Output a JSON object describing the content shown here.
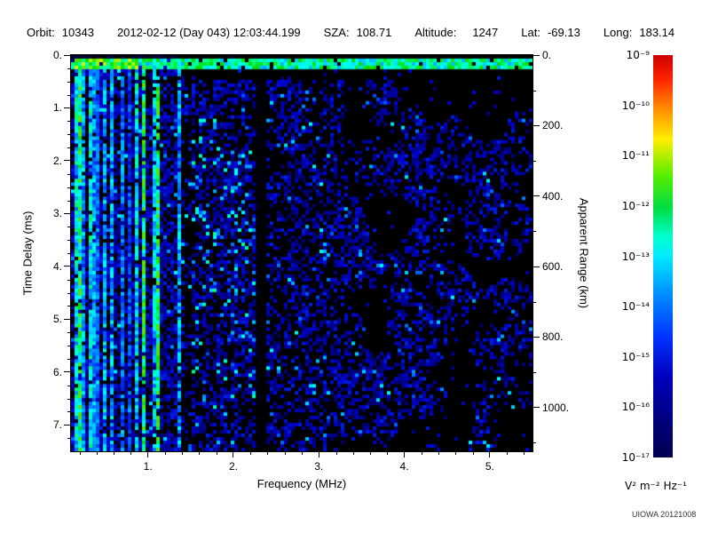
{
  "header": {
    "orbit_label": "Orbit:",
    "orbit_value": "10343",
    "datetime": "2012-02-12 (Day 043) 12:03:44.199",
    "sza_label": "SZA:",
    "sza_value": "108.71",
    "altitude_label": "Altitude:",
    "altitude_value": "1247",
    "lat_label": "Lat:",
    "lat_value": "-69.13",
    "long_label": "Long:",
    "long_value": "183.14"
  },
  "chart_data": {
    "type": "heatmap",
    "title": "",
    "xlabel": "Frequency (MHz)",
    "ylabel_left": "Time Delay (ms)",
    "ylabel_right": "Apparent Range (km)",
    "x_range_mhz": [
      0.1,
      5.5
    ],
    "x_tick_labels": [
      "1.",
      "2.",
      "3.",
      "4.",
      "5."
    ],
    "y_range_ms": [
      0,
      7.5
    ],
    "y_tick_labels": [
      "0.",
      "1.",
      "2.",
      "3.",
      "4.",
      "5.",
      "6.",
      "7."
    ],
    "right_tick_labels": [
      "0.",
      "200.",
      "400.",
      "600.",
      "800.",
      "1000."
    ],
    "right_axis_km_per_ms": 149.9,
    "description": "Radar sounder ionogram: bright surface-reflection band near 0.1-0.3 ms across all frequencies, strong vertical ionospheric/interference stripes below ~1.5 MHz, diffuse blue noise speckle elsewhere, dark vertical gap near 2.3 MHz, sparse blotchy noise above ~3.8 MHz",
    "spectrogram": {
      "seed": 20121008,
      "noise_cols": 130,
      "noise_rows": 112,
      "band_t_ms": [
        0.08,
        0.3
      ],
      "gap_mhz": [
        2.28,
        2.4
      ],
      "stripe_max_mhz": 1.5
    },
    "colormap": [
      {
        "v": 0.0,
        "c": "#000000"
      },
      {
        "v": 0.1,
        "c": "#000060"
      },
      {
        "v": 0.22,
        "c": "#0000cc"
      },
      {
        "v": 0.32,
        "c": "#0055ff"
      },
      {
        "v": 0.42,
        "c": "#00aaff"
      },
      {
        "v": 0.5,
        "c": "#00ffff"
      },
      {
        "v": 0.6,
        "c": "#00ff88"
      },
      {
        "v": 0.68,
        "c": "#00dd00"
      },
      {
        "v": 0.8,
        "c": "#ffff00"
      },
      {
        "v": 0.9,
        "c": "#ff8800"
      },
      {
        "v": 1.0,
        "c": "#ff0000"
      }
    ],
    "colorbar": {
      "tick_labels": [
        "10⁻⁹",
        "10⁻¹⁰",
        "10⁻¹¹",
        "10⁻¹²",
        "10⁻¹³",
        "10⁻¹⁴",
        "10⁻¹⁵",
        "10⁻¹⁶",
        "10⁻¹⁷"
      ],
      "units": "V² m⁻² Hz⁻¹",
      "gradient": [
        {
          "p": 0.0,
          "c": "#cc0000"
        },
        {
          "p": 0.06,
          "c": "#ff2200"
        },
        {
          "p": 0.13,
          "c": "#ff8800"
        },
        {
          "p": 0.21,
          "c": "#ffee00"
        },
        {
          "p": 0.3,
          "c": "#55ee00"
        },
        {
          "p": 0.38,
          "c": "#00dd44"
        },
        {
          "p": 0.45,
          "c": "#00ffcc"
        },
        {
          "p": 0.5,
          "c": "#00eaff"
        },
        {
          "p": 0.6,
          "c": "#0088ff"
        },
        {
          "p": 0.7,
          "c": "#0033ff"
        },
        {
          "p": 0.8,
          "c": "#0000bb"
        },
        {
          "p": 0.92,
          "c": "#000077"
        },
        {
          "p": 1.0,
          "c": "#000050"
        }
      ]
    }
  },
  "footer": {
    "credit": "UIOWA 20121008"
  }
}
